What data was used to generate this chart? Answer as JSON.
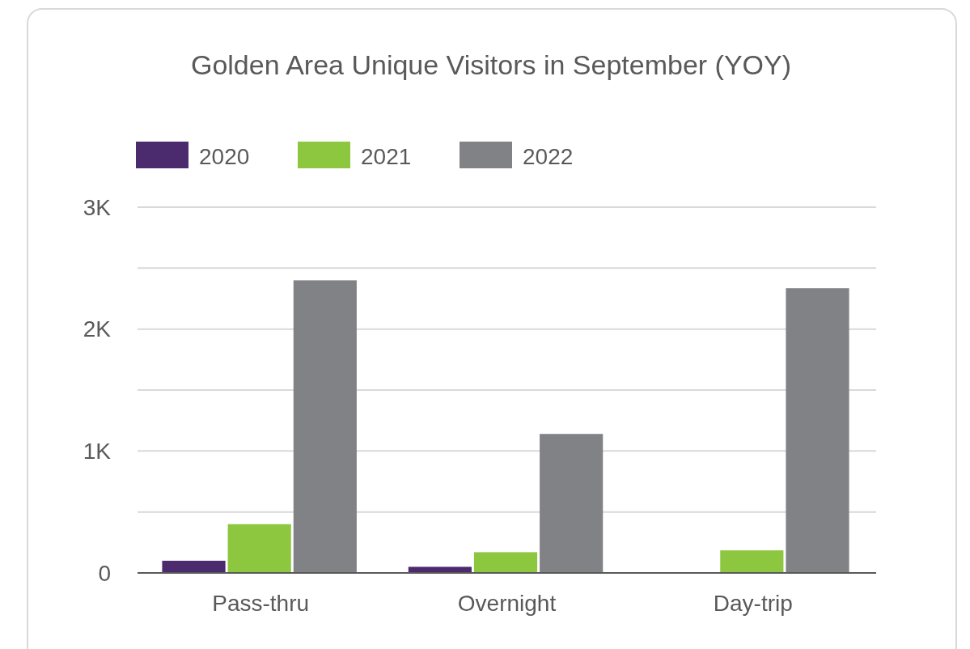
{
  "chart_data": {
    "type": "bar",
    "title": "Golden Area Unique Visitors in September (YOY)",
    "categories": [
      "Pass-thru",
      "Overnight",
      "Day-trip"
    ],
    "series": [
      {
        "name": "2020",
        "color": "#4b2a6e",
        "values": [
          100,
          50,
          0
        ]
      },
      {
        "name": "2021",
        "color": "#8dc63f",
        "values": [
          400,
          170,
          185
        ]
      },
      {
        "name": "2022",
        "color": "#818285",
        "values": [
          2400,
          1140,
          2335
        ]
      }
    ],
    "ylim": [
      0,
      3000
    ],
    "yticks": [
      0,
      {
        "value": 500,
        "label": null
      },
      {
        "value": 1000,
        "label": "1K"
      },
      {
        "value": 1500,
        "label": null
      },
      {
        "value": 2000,
        "label": "2K"
      },
      {
        "value": 2500,
        "label": null
      },
      {
        "value": 3000,
        "label": "3K"
      }
    ],
    "grid": "y",
    "legend": "top left"
  }
}
